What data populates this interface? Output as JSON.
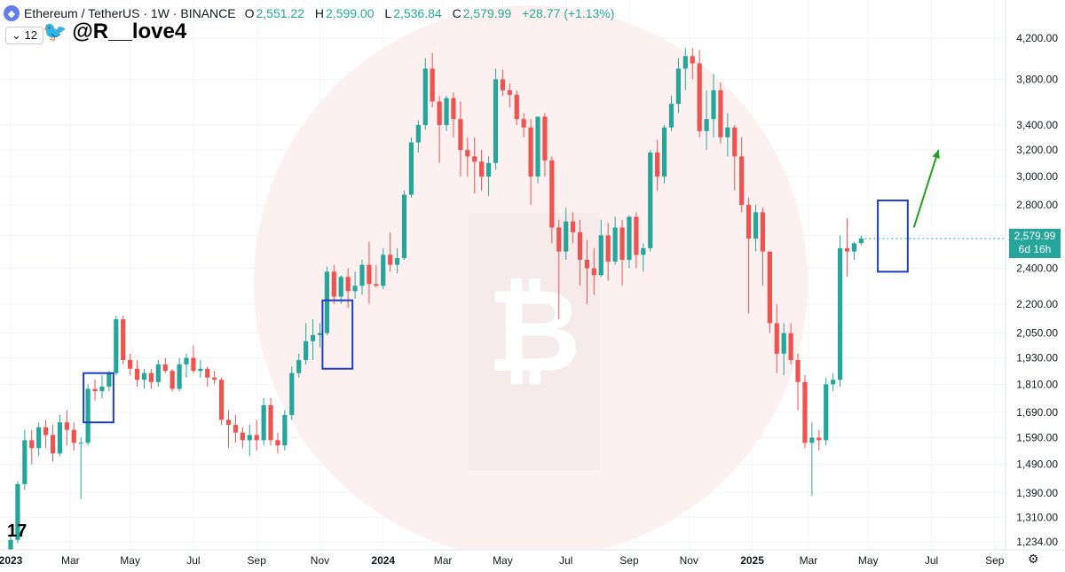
{
  "header": {
    "icon": "ethereum-icon",
    "symbol": "Ethereum / TetherUS",
    "interval": "1W",
    "exchange": "BINANCE",
    "title": "Ethereum / TetherUS · 1W · BINANCE",
    "open_label": "O",
    "open": "2,551.22",
    "high_label": "H",
    "high": "2,599.00",
    "low_label": "L",
    "low": "2,536.84",
    "close_label": "C",
    "close": "2,579.99",
    "change": "+28.77 (+1.13%)",
    "interval_selector": "12"
  },
  "watermark_handle": "@R__love4",
  "current_price": {
    "price": "2,579.99",
    "countdown": "6d 16h"
  },
  "colors": {
    "up": "#26a69a",
    "down": "#ef5350",
    "box": "#1d3fbf",
    "arrow": "#21a121",
    "tag": "#26a69a"
  },
  "chart_data": {
    "type": "candlestick",
    "scale": "log",
    "ylim": [
      1200,
      4400
    ],
    "y_ticks": [
      1234,
      1310,
      1390,
      1490,
      1590,
      1690,
      1810,
      1930,
      2050,
      2200,
      2400,
      2600,
      2800,
      3000,
      3200,
      3400,
      3800,
      4200
    ],
    "y_tick_labels": [
      "1,234.00",
      "1,310.00",
      "1,390.00",
      "1,490.00",
      "1,590.00",
      "1,690.00",
      "1,810.00",
      "1,930.00",
      "2,050.00",
      "2,200.00",
      "2,400.00",
      "2,600.00",
      "2,800.00",
      "3,000.00",
      "3,200.00",
      "3,400.00",
      "3,800.00",
      "4,200.00"
    ],
    "x_labels": [
      {
        "label": "2023",
        "week": 0
      },
      {
        "label": "Mar",
        "week": 8.5
      },
      {
        "label": "May",
        "week": 17
      },
      {
        "label": "Jul",
        "week": 26
      },
      {
        "label": "Sep",
        "week": 35
      },
      {
        "label": "Nov",
        "week": 44
      },
      {
        "label": "2024",
        "week": 53
      },
      {
        "label": "Mar",
        "week": 61.5
      },
      {
        "label": "May",
        "week": 70
      },
      {
        "label": "Jul",
        "week": 79
      },
      {
        "label": "Sep",
        "week": 88
      },
      {
        "label": "Nov",
        "week": 96.5
      },
      {
        "label": "2025",
        "week": 105.5
      },
      {
        "label": "Mar",
        "week": 113.5
      },
      {
        "label": "May",
        "week": 122
      },
      {
        "label": "Jul",
        "week": 131
      },
      {
        "label": "Sep",
        "week": 140
      }
    ],
    "grid": true,
    "candles": [
      [
        1197,
        1250,
        1195,
        1240
      ],
      [
        1240,
        1430,
        1230,
        1420
      ],
      [
        1420,
        1620,
        1400,
        1580
      ],
      [
        1580,
        1620,
        1490,
        1550
      ],
      [
        1550,
        1650,
        1520,
        1630
      ],
      [
        1630,
        1660,
        1550,
        1600
      ],
      [
        1600,
        1640,
        1500,
        1530
      ],
      [
        1530,
        1680,
        1520,
        1650
      ],
      [
        1650,
        1700,
        1560,
        1620
      ],
      [
        1620,
        1650,
        1540,
        1570
      ],
      [
        1570,
        1590,
        1370,
        1570
      ],
      [
        1570,
        1810,
        1560,
        1790
      ],
      [
        1790,
        1830,
        1740,
        1780
      ],
      [
        1780,
        1850,
        1750,
        1800
      ],
      [
        1800,
        1870,
        1780,
        1860
      ],
      [
        1860,
        2140,
        1850,
        2120
      ],
      [
        2120,
        2140,
        1900,
        1920
      ],
      [
        1920,
        1950,
        1850,
        1880
      ],
      [
        1880,
        1920,
        1800,
        1830
      ],
      [
        1830,
        1880,
        1790,
        1860
      ],
      [
        1860,
        1880,
        1790,
        1820
      ],
      [
        1820,
        1920,
        1800,
        1900
      ],
      [
        1900,
        1930,
        1860,
        1870
      ],
      [
        1870,
        1880,
        1780,
        1790
      ],
      [
        1790,
        1930,
        1780,
        1900
      ],
      [
        1900,
        1950,
        1840,
        1930
      ],
      [
        1930,
        1990,
        1860,
        1870
      ],
      [
        1870,
        1920,
        1840,
        1880
      ],
      [
        1880,
        1890,
        1800,
        1840
      ],
      [
        1840,
        1870,
        1810,
        1830
      ],
      [
        1830,
        1840,
        1640,
        1660
      ],
      [
        1660,
        1700,
        1550,
        1640
      ],
      [
        1640,
        1680,
        1570,
        1610
      ],
      [
        1610,
        1630,
        1550,
        1580
      ],
      [
        1580,
        1640,
        1520,
        1600
      ],
      [
        1600,
        1660,
        1540,
        1580
      ],
      [
        1580,
        1750,
        1560,
        1720
      ],
      [
        1720,
        1750,
        1560,
        1580
      ],
      [
        1580,
        1610,
        1530,
        1560
      ],
      [
        1560,
        1700,
        1540,
        1680
      ],
      [
        1680,
        1890,
        1660,
        1860
      ],
      [
        1860,
        1950,
        1840,
        1920
      ],
      [
        1920,
        2100,
        1900,
        2010
      ],
      [
        2010,
        2120,
        1920,
        2040
      ],
      [
        2040,
        2100,
        1980,
        2050
      ],
      [
        2050,
        2410,
        2040,
        2380
      ],
      [
        2380,
        2420,
        2200,
        2240
      ],
      [
        2240,
        2360,
        2200,
        2350
      ],
      [
        2350,
        2400,
        2180,
        2270
      ],
      [
        2270,
        2380,
        2230,
        2300
      ],
      [
        2300,
        2450,
        2250,
        2420
      ],
      [
        2420,
        2560,
        2200,
        2310
      ],
      [
        2310,
        2420,
        2290,
        2300
      ],
      [
        2300,
        2520,
        2280,
        2480
      ],
      [
        2480,
        2620,
        2380,
        2420
      ],
      [
        2420,
        2520,
        2370,
        2460
      ],
      [
        2460,
        2900,
        2450,
        2870
      ],
      [
        2870,
        3300,
        2850,
        3260
      ],
      [
        3260,
        3440,
        3180,
        3400
      ],
      [
        3400,
        4000,
        3360,
        3900
      ],
      [
        3900,
        4050,
        3550,
        3600
      ],
      [
        3600,
        3650,
        3100,
        3400
      ],
      [
        3400,
        3650,
        3350,
        3630
      ],
      [
        3630,
        3680,
        3300,
        3450
      ],
      [
        3450,
        3600,
        3000,
        3200
      ],
      [
        3200,
        3300,
        3000,
        3150
      ],
      [
        3150,
        3300,
        2880,
        3110
      ],
      [
        3110,
        3200,
        2900,
        3000
      ],
      [
        3000,
        3150,
        2860,
        3100
      ],
      [
        3100,
        3900,
        3050,
        3800
      ],
      [
        3800,
        3890,
        3650,
        3700
      ],
      [
        3700,
        3760,
        3550,
        3660
      ],
      [
        3660,
        3700,
        3400,
        3450
      ],
      [
        3450,
        3500,
        3300,
        3380
      ],
      [
        3380,
        3450,
        2800,
        3000
      ],
      [
        3000,
        3450,
        2950,
        3470
      ],
      [
        3470,
        3500,
        3000,
        3120
      ],
      [
        3120,
        3150,
        2550,
        2650
      ],
      [
        2650,
        2700,
        2120,
        2500
      ],
      [
        2500,
        2780,
        2450,
        2690
      ],
      [
        2690,
        2750,
        2550,
        2620
      ],
      [
        2620,
        2700,
        2300,
        2450
      ],
      [
        2450,
        2570,
        2200,
        2400
      ],
      [
        2400,
        2520,
        2250,
        2360
      ],
      [
        2360,
        2700,
        2350,
        2600
      ],
      [
        2600,
        2680,
        2330,
        2440
      ],
      [
        2440,
        2720,
        2420,
        2650
      ],
      [
        2650,
        2700,
        2300,
        2450
      ],
      [
        2450,
        2730,
        2400,
        2720
      ],
      [
        2720,
        2750,
        2400,
        2480
      ],
      [
        2480,
        2550,
        2380,
        2520
      ],
      [
        2520,
        3200,
        2500,
        3180
      ],
      [
        3180,
        3280,
        2900,
        3000
      ],
      [
        3000,
        3400,
        2950,
        3380
      ],
      [
        3380,
        3650,
        3350,
        3580
      ],
      [
        3580,
        4000,
        3500,
        3900
      ],
      [
        3900,
        4100,
        3700,
        4020
      ],
      [
        4020,
        4100,
        3800,
        3950
      ],
      [
        3950,
        4080,
        3300,
        3350
      ],
      [
        3350,
        3700,
        3200,
        3450
      ],
      [
        3450,
        3850,
        3300,
        3700
      ],
      [
        3700,
        3770,
        3250,
        3300
      ],
      [
        3300,
        3500,
        3150,
        3380
      ],
      [
        3380,
        3400,
        2900,
        3150
      ],
      [
        3150,
        3300,
        2750,
        2800
      ],
      [
        2800,
        2850,
        2150,
        2580
      ],
      [
        2580,
        2800,
        2500,
        2750
      ],
      [
        2750,
        2780,
        2300,
        2500
      ],
      [
        2500,
        2500,
        2050,
        2100
      ],
      [
        2100,
        2200,
        1860,
        1950
      ],
      [
        1950,
        2100,
        1850,
        2050
      ],
      [
        2050,
        2100,
        1900,
        1920
      ],
      [
        1920,
        1950,
        1700,
        1820
      ],
      [
        1820,
        1850,
        1550,
        1570
      ],
      [
        1570,
        1650,
        1380,
        1590
      ],
      [
        1590,
        1620,
        1540,
        1580
      ],
      [
        1580,
        1840,
        1560,
        1810
      ],
      [
        1810,
        1860,
        1780,
        1830
      ],
      [
        1830,
        2600,
        1800,
        2520
      ],
      [
        2520,
        2710,
        2350,
        2500
      ],
      [
        2500,
        2560,
        2450,
        2550
      ],
      [
        2551.22,
        2599,
        2536.84,
        2579.99
      ]
    ],
    "highlight_boxes": [
      {
        "start_week": 11,
        "end_week": 14,
        "low": 1650,
        "high": 1860
      },
      {
        "start_week": 45,
        "end_week": 48,
        "low": 1880,
        "high": 2220
      },
      {
        "start_week": 124,
        "end_week": 127,
        "low": 2380,
        "high": 2830
      }
    ],
    "annotation_arrow": {
      "from_week": 128.5,
      "from_price": 2650,
      "to_week": 132,
      "to_price": 3200
    }
  }
}
